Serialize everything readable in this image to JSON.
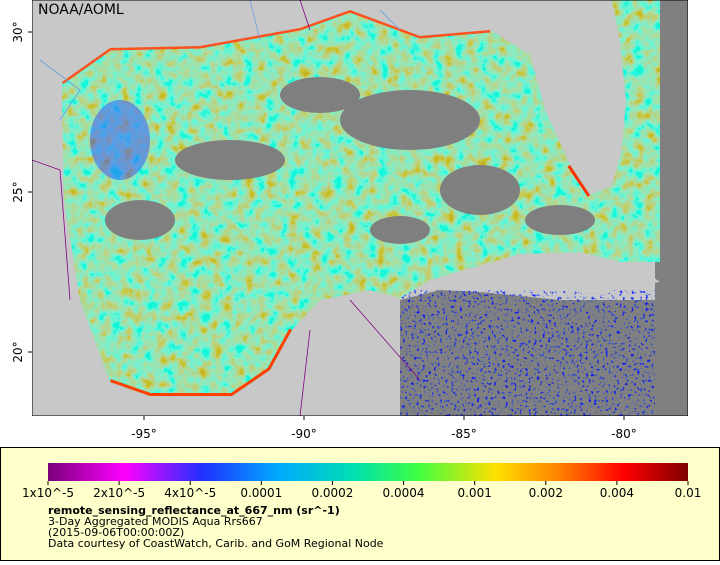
{
  "map": {
    "credit": "NOAA/AOML",
    "xlim": [
      -98.5,
      -78
    ],
    "ylim": [
      18,
      31
    ],
    "xticks": [
      {
        "value": -95,
        "label": "-95°"
      },
      {
        "value": -90,
        "label": "-90°"
      },
      {
        "value": -85,
        "label": "-85°"
      },
      {
        "value": -80,
        "label": "-80°"
      }
    ],
    "yticks": [
      {
        "value": 20,
        "label": "20°"
      },
      {
        "value": 25,
        "label": "25°"
      },
      {
        "value": 30,
        "label": "30°"
      }
    ]
  },
  "colorbar": {
    "ticks": [
      {
        "value": 1e-05,
        "label": "1x10^-5"
      },
      {
        "value": 2e-05,
        "label": "2x10^-5"
      },
      {
        "value": 4e-05,
        "label": "4x10^-5"
      },
      {
        "value": 0.0001,
        "label": "0.0001"
      },
      {
        "value": 0.0002,
        "label": "0.0002"
      },
      {
        "value": 0.0004,
        "label": "0.0004"
      },
      {
        "value": 0.001,
        "label": "0.001"
      },
      {
        "value": 0.002,
        "label": "0.002"
      },
      {
        "value": 0.004,
        "label": "0.004"
      },
      {
        "value": 0.01,
        "label": "0.01"
      }
    ]
  },
  "legend": {
    "variable": "remote_sensing_reflectance_at_667_nm (sr^-1)",
    "dataset": "3-Day Aggregated MODIS Aqua Rrs667",
    "time": "(2015-09-06T00:00:00Z)",
    "credit": "Data courtesy of CoastWatch, Carib. and GoM Regional Node"
  }
}
